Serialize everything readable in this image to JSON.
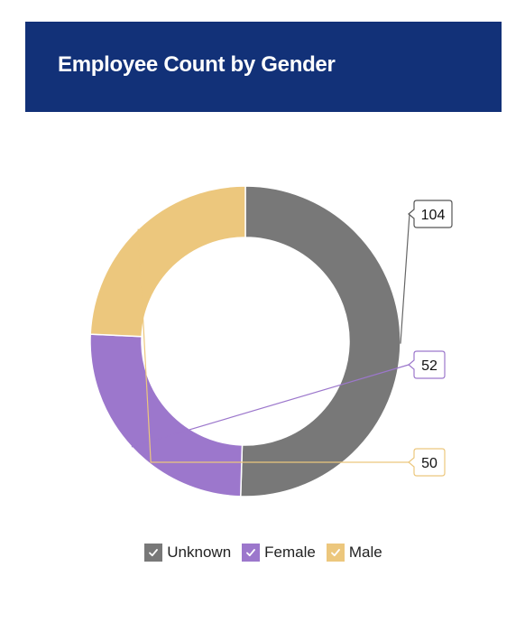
{
  "header": {
    "title": "Employee Count by Gender"
  },
  "chart_data": {
    "type": "pie",
    "donut": true,
    "categories": [
      "Unknown",
      "Female",
      "Male"
    ],
    "values": [
      104,
      52,
      50
    ],
    "colors": [
      "#787878",
      "#9c77cc",
      "#ecc77d"
    ],
    "data_labels": [
      "104",
      "52",
      "50"
    ],
    "legend_position": "bottom-center",
    "legend_checked": [
      true,
      true,
      true
    ],
    "title": ""
  },
  "colors": {
    "header_background": "#123178",
    "header_text": "#ffffff"
  },
  "icons": {
    "legend_marker": "check-icon"
  }
}
